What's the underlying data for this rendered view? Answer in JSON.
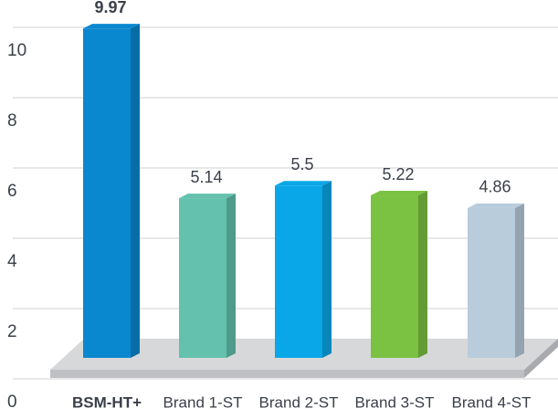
{
  "chart_data": {
    "type": "bar",
    "categories": [
      "BSM-HT+",
      "Brand 1-ST",
      "Brand 2-ST",
      "Brand 3-ST",
      "Brand 4-ST"
    ],
    "values": [
      9.97,
      5.14,
      5.5,
      5.22,
      4.86
    ],
    "colors": [
      "#0a88cf",
      "#63c1ad",
      "#0aa7e8",
      "#7cc242",
      "#b8ccdc"
    ],
    "ylim": [
      0,
      10.8
    ],
    "yticks": [
      0,
      2,
      4,
      6,
      8,
      10
    ],
    "grid": true
  }
}
